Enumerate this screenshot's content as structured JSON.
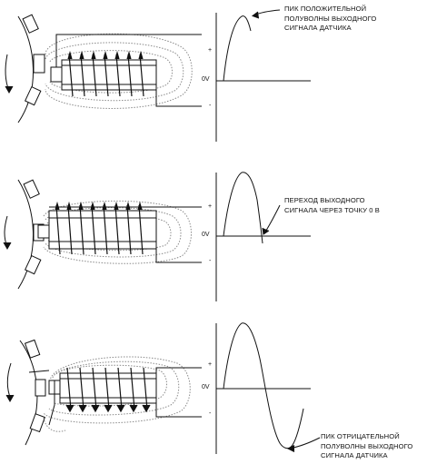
{
  "panels": [
    {
      "id": "panel-1",
      "annotation": [
        "ПИК ПОЛОЖИТЕЛЬНОЙ",
        "ПОЛУВОЛНЫ ВЫХОДНОГО",
        "СИГНАЛА ДАТЧИКА"
      ],
      "axis": {
        "plus": "+",
        "zero": "0V",
        "minus": "-"
      }
    },
    {
      "id": "panel-2",
      "annotation": [
        "ПЕРЕХОД ВЫХОДНОГО",
        "СИГНАЛА ЧЕРЕЗ ТОЧКУ 0 В"
      ],
      "axis": {
        "plus": "+",
        "zero": "0V",
        "minus": "-"
      }
    },
    {
      "id": "panel-3",
      "annotation": [
        "ПИК ОТРИЦАТЕЛЬНОЙ",
        "ПОЛУВОЛНЫ ВЫХОДНОГО",
        "СИГНАЛА ДАТЧИКА"
      ],
      "axis": {
        "plus": "+",
        "zero": "0V",
        "minus": "-"
      }
    }
  ],
  "colors": {
    "ink": "#111111",
    "field": "#8a8a8a"
  }
}
